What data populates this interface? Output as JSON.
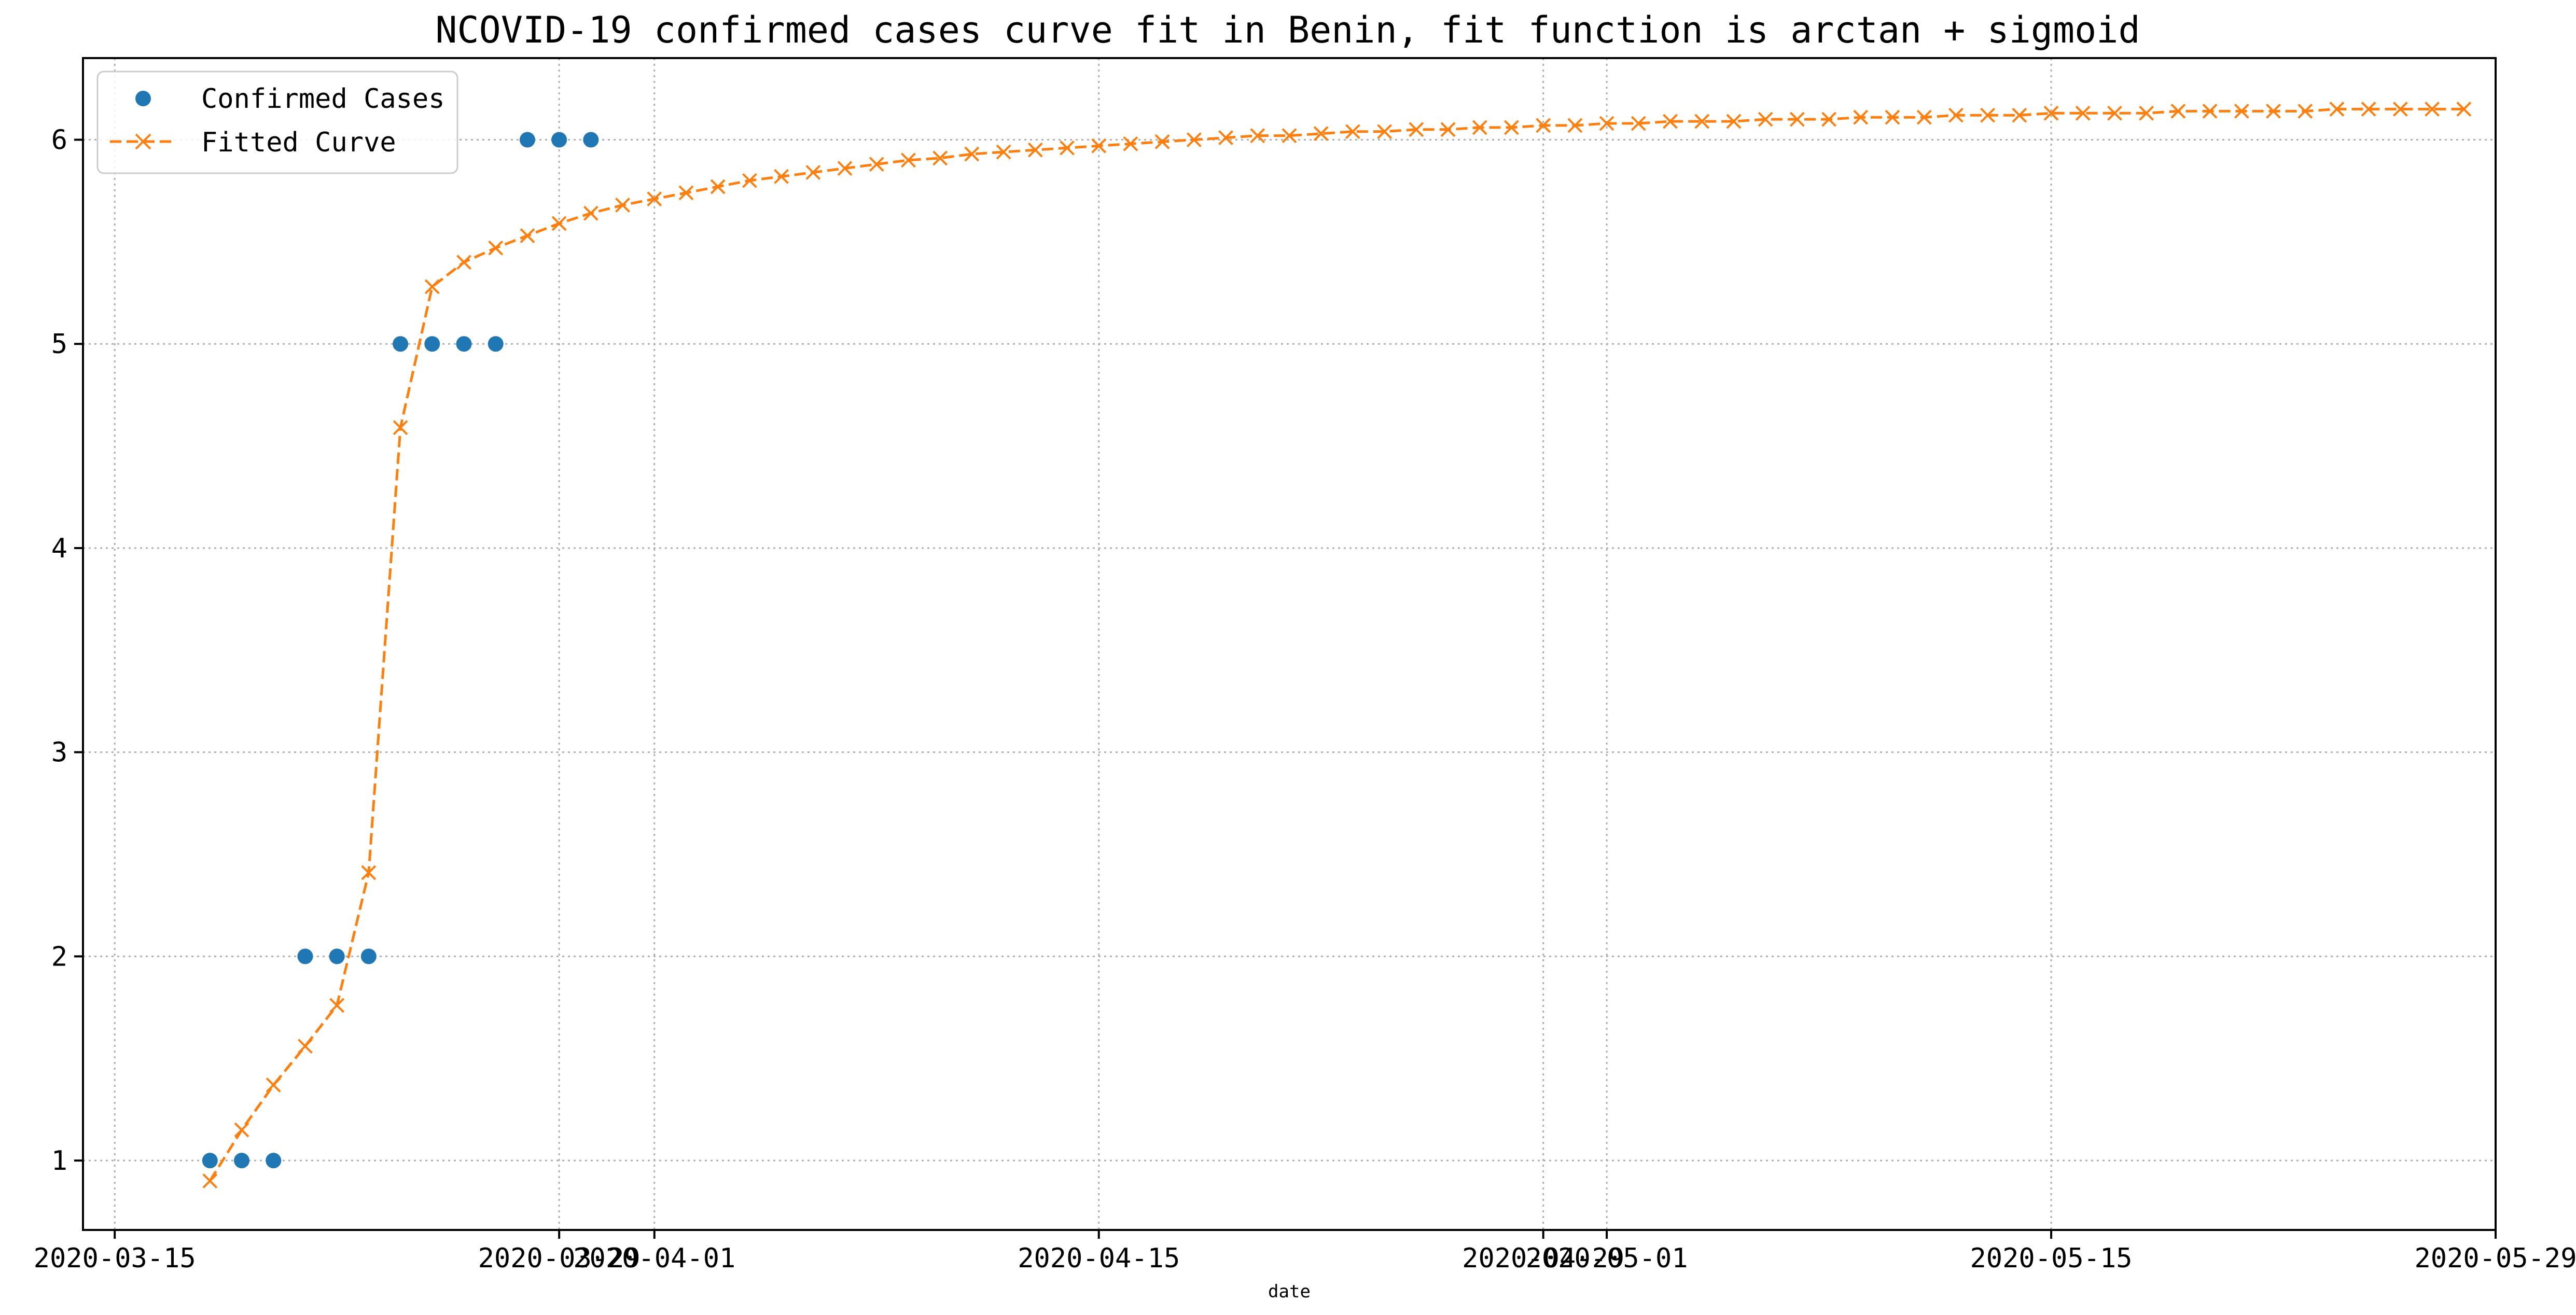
{
  "chart_data": {
    "type": "line",
    "title": "NCOVID-19 confirmed cases curve fit in Benin, fit function is arctan + sigmoid",
    "xlabel": "date",
    "ylabel": "",
    "x_axis_type": "date",
    "xlim": [
      "2020-03-14",
      "2020-05-29"
    ],
    "ylim": [
      0.66,
      6.4
    ],
    "grid": true,
    "legend_position": "upper-left",
    "x_tick_labels": [
      {
        "date": "2020-03-15",
        "label": "2020-03-15"
      },
      {
        "date": "2020-03-29",
        "label": "2020-03-29"
      },
      {
        "date": "2020-04-01",
        "label": "2020-04-01"
      },
      {
        "date": "2020-04-15",
        "label": "2020-04-15"
      },
      {
        "date": "2020-04-29",
        "label": "2020-04-29"
      },
      {
        "date": "2020-05-01",
        "label": "2020-05-01"
      },
      {
        "date": "2020-05-15",
        "label": "2020-05-15"
      },
      {
        "date": "2020-05-29",
        "label": "2020-05-29"
      }
    ],
    "y_ticks": [
      1,
      2,
      3,
      4,
      5,
      6
    ],
    "y_tick_labels": [
      "1",
      "2",
      "3",
      "4",
      "5",
      "6"
    ],
    "series": [
      {
        "name": "Confirmed Cases",
        "style": "markers",
        "marker": "circle",
        "color": "#1f77b4",
        "x": [
          "2020-03-18",
          "2020-03-19",
          "2020-03-20",
          "2020-03-21",
          "2020-03-22",
          "2020-03-23",
          "2020-03-24",
          "2020-03-25",
          "2020-03-26",
          "2020-03-27",
          "2020-03-28",
          "2020-03-29",
          "2020-03-30"
        ],
        "y": [
          1,
          1,
          1,
          2,
          2,
          2,
          5,
          5,
          5,
          5,
          6,
          6,
          6
        ]
      },
      {
        "name": "Fitted Curve",
        "style": "dashed-line-with-x-markers",
        "marker": "x",
        "color": "#ff7f0e",
        "start_date": "2020-03-18",
        "y": [
          0.9,
          1.15,
          1.37,
          1.56,
          1.76,
          2.41,
          4.59,
          5.28,
          5.4,
          5.47,
          5.53,
          5.59,
          5.64,
          5.68,
          5.71,
          5.74,
          5.77,
          5.8,
          5.82,
          5.84,
          5.86,
          5.88,
          5.9,
          5.91,
          5.93,
          5.94,
          5.95,
          5.96,
          5.97,
          5.98,
          5.99,
          6.0,
          6.01,
          6.02,
          6.02,
          6.03,
          6.04,
          6.04,
          6.05,
          6.05,
          6.06,
          6.06,
          6.07,
          6.07,
          6.08,
          6.08,
          6.09,
          6.09,
          6.09,
          6.1,
          6.1,
          6.1,
          6.11,
          6.11,
          6.11,
          6.12,
          6.12,
          6.12,
          6.13,
          6.13,
          6.13,
          6.13,
          6.14,
          6.14,
          6.14,
          6.14,
          6.14,
          6.15,
          6.15,
          6.15,
          6.15,
          6.15
        ]
      }
    ]
  }
}
